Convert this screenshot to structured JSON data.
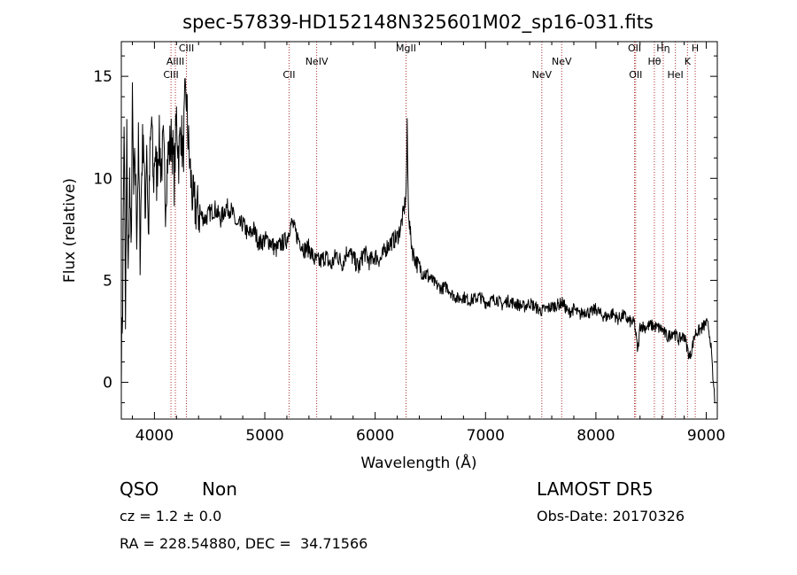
{
  "chart_data": {
    "type": "line",
    "title": "spec-57839-HD152148N325601M02_sp16-031.fits",
    "xlabel": "Wavelength (Å)",
    "ylabel": "Flux (relative)",
    "xlim": [
      3700,
      9100
    ],
    "ylim": [
      -1.8,
      16.7
    ],
    "xticks": [
      4000,
      5000,
      6000,
      7000,
      8000,
      9000
    ],
    "yticks": [
      0,
      5,
      10,
      15
    ],
    "grid": false,
    "series": [
      {
        "x": [
          3700,
          3712,
          3725,
          3738,
          3750,
          3762,
          3775,
          3788,
          3800,
          3812,
          3825,
          3840,
          3855,
          3870,
          3885,
          3900,
          3915,
          3930,
          3945,
          3960,
          3975,
          3990,
          4005,
          4020,
          4040,
          4060,
          4080,
          4100,
          4120,
          4140,
          4160,
          4180,
          4200,
          4220,
          4240,
          4260,
          4275,
          4290,
          4300,
          4310,
          4330,
          4350,
          4380,
          4420,
          4460,
          4500,
          4550,
          4600,
          4650,
          4700,
          4750,
          4800,
          4850,
          4900,
          4950,
          5000,
          5050,
          5100,
          5150,
          5200,
          5230,
          5250,
          5280,
          5320,
          5360,
          5400,
          5450,
          5500,
          5550,
          5600,
          5650,
          5700,
          5750,
          5800,
          5850,
          5900,
          5950,
          6000,
          6050,
          6100,
          6150,
          6200,
          6230,
          6260,
          6280,
          6290,
          6300,
          6310,
          6320,
          6340,
          6380,
          6420,
          6460,
          6500,
          6550,
          6600,
          6650,
          6700,
          6750,
          6800,
          6850,
          6900,
          6950,
          7000,
          7050,
          7100,
          7150,
          7200,
          7250,
          7300,
          7350,
          7400,
          7450,
          7500,
          7550,
          7600,
          7650,
          7700,
          7750,
          7800,
          7850,
          7900,
          7950,
          8000,
          8050,
          8100,
          8150,
          8200,
          8250,
          8300,
          8350,
          8380,
          8400,
          8450,
          8500,
          8550,
          8600,
          8650,
          8700,
          8750,
          8800,
          8850,
          8900,
          8950,
          9000,
          9020,
          9040,
          9060,
          9080
        ],
        "y": [
          1.0,
          4.0,
          13.0,
          2.5,
          12.0,
          5.0,
          10.0,
          6.0,
          13.5,
          9.0,
          11.0,
          7.5,
          11.5,
          6.5,
          10.5,
          12.5,
          8.0,
          12.0,
          7.0,
          11.0,
          13.0,
          9.5,
          11.5,
          10.0,
          12.0,
          10.5,
          11.5,
          9.0,
          11.0,
          11.5,
          12.0,
          10.0,
          13.0,
          11.0,
          12.5,
          11.0,
          13.5,
          14.0,
          12.5,
          11.5,
          10.0,
          8.8,
          8.5,
          8.2,
          8.0,
          8.3,
          8.5,
          8.0,
          8.6,
          8.4,
          7.6,
          7.8,
          7.2,
          7.5,
          6.8,
          7.0,
          6.9,
          6.5,
          6.8,
          7.0,
          7.7,
          7.8,
          7.3,
          6.9,
          6.5,
          6.6,
          6.0,
          5.9,
          6.2,
          5.7,
          6.3,
          5.8,
          6.5,
          6.1,
          5.6,
          6.4,
          5.9,
          6.2,
          6.0,
          6.6,
          6.9,
          7.1,
          7.6,
          8.4,
          9.2,
          12.5,
          8.8,
          7.8,
          7.2,
          6.4,
          5.8,
          5.5,
          5.3,
          5.1,
          4.8,
          4.6,
          4.7,
          4.3,
          4.1,
          4.2,
          4.0,
          4.1,
          4.2,
          3.9,
          4.0,
          4.1,
          3.8,
          4.0,
          3.9,
          3.8,
          3.7,
          3.9,
          3.7,
          3.5,
          3.6,
          3.7,
          3.8,
          3.9,
          3.4,
          3.6,
          3.3,
          3.5,
          3.4,
          3.6,
          3.3,
          3.2,
          3.4,
          3.1,
          3.3,
          3.0,
          2.9,
          1.5,
          2.8,
          2.7,
          2.8,
          2.7,
          2.6,
          2.2,
          2.5,
          2.1,
          2.3,
          1.2,
          2.4,
          2.6,
          2.9,
          2.7,
          2.0,
          0.2,
          -1.0
        ]
      }
    ],
    "lines": [
      {
        "name": "CIII",
        "x": 4150
      },
      {
        "name": "AlIII",
        "x": 4190
      },
      {
        "name": "CIII",
        "x": 4290
      },
      {
        "name": "CII",
        "x": 5220
      },
      {
        "name": "NeIV",
        "x": 5470
      },
      {
        "name": "MgII",
        "x": 6280
      },
      {
        "name": "NeV",
        "x": 7510
      },
      {
        "name": "NeV",
        "x": 7690
      },
      {
        "name": "OII",
        "x": 8350
      },
      {
        "name": "OII",
        "x": 8360
      },
      {
        "name": "Hθ",
        "x": 8530
      },
      {
        "name": "Hη",
        "x": 8610
      },
      {
        "name": "HeI",
        "x": 8720
      },
      {
        "name": "K",
        "x": 8830
      },
      {
        "name": "H",
        "x": 8900
      }
    ]
  },
  "info": {
    "class": "QSO",
    "subclass": "Non",
    "cz": "cz = 1.2 ± 0.0",
    "coords": "RA = 228.54880, DEC =  34.71566",
    "survey": "LAMOST DR5",
    "obsdate": "Obs-Date: 20170326"
  },
  "colors": {
    "line": "#000000",
    "marker": "#b03030"
  }
}
